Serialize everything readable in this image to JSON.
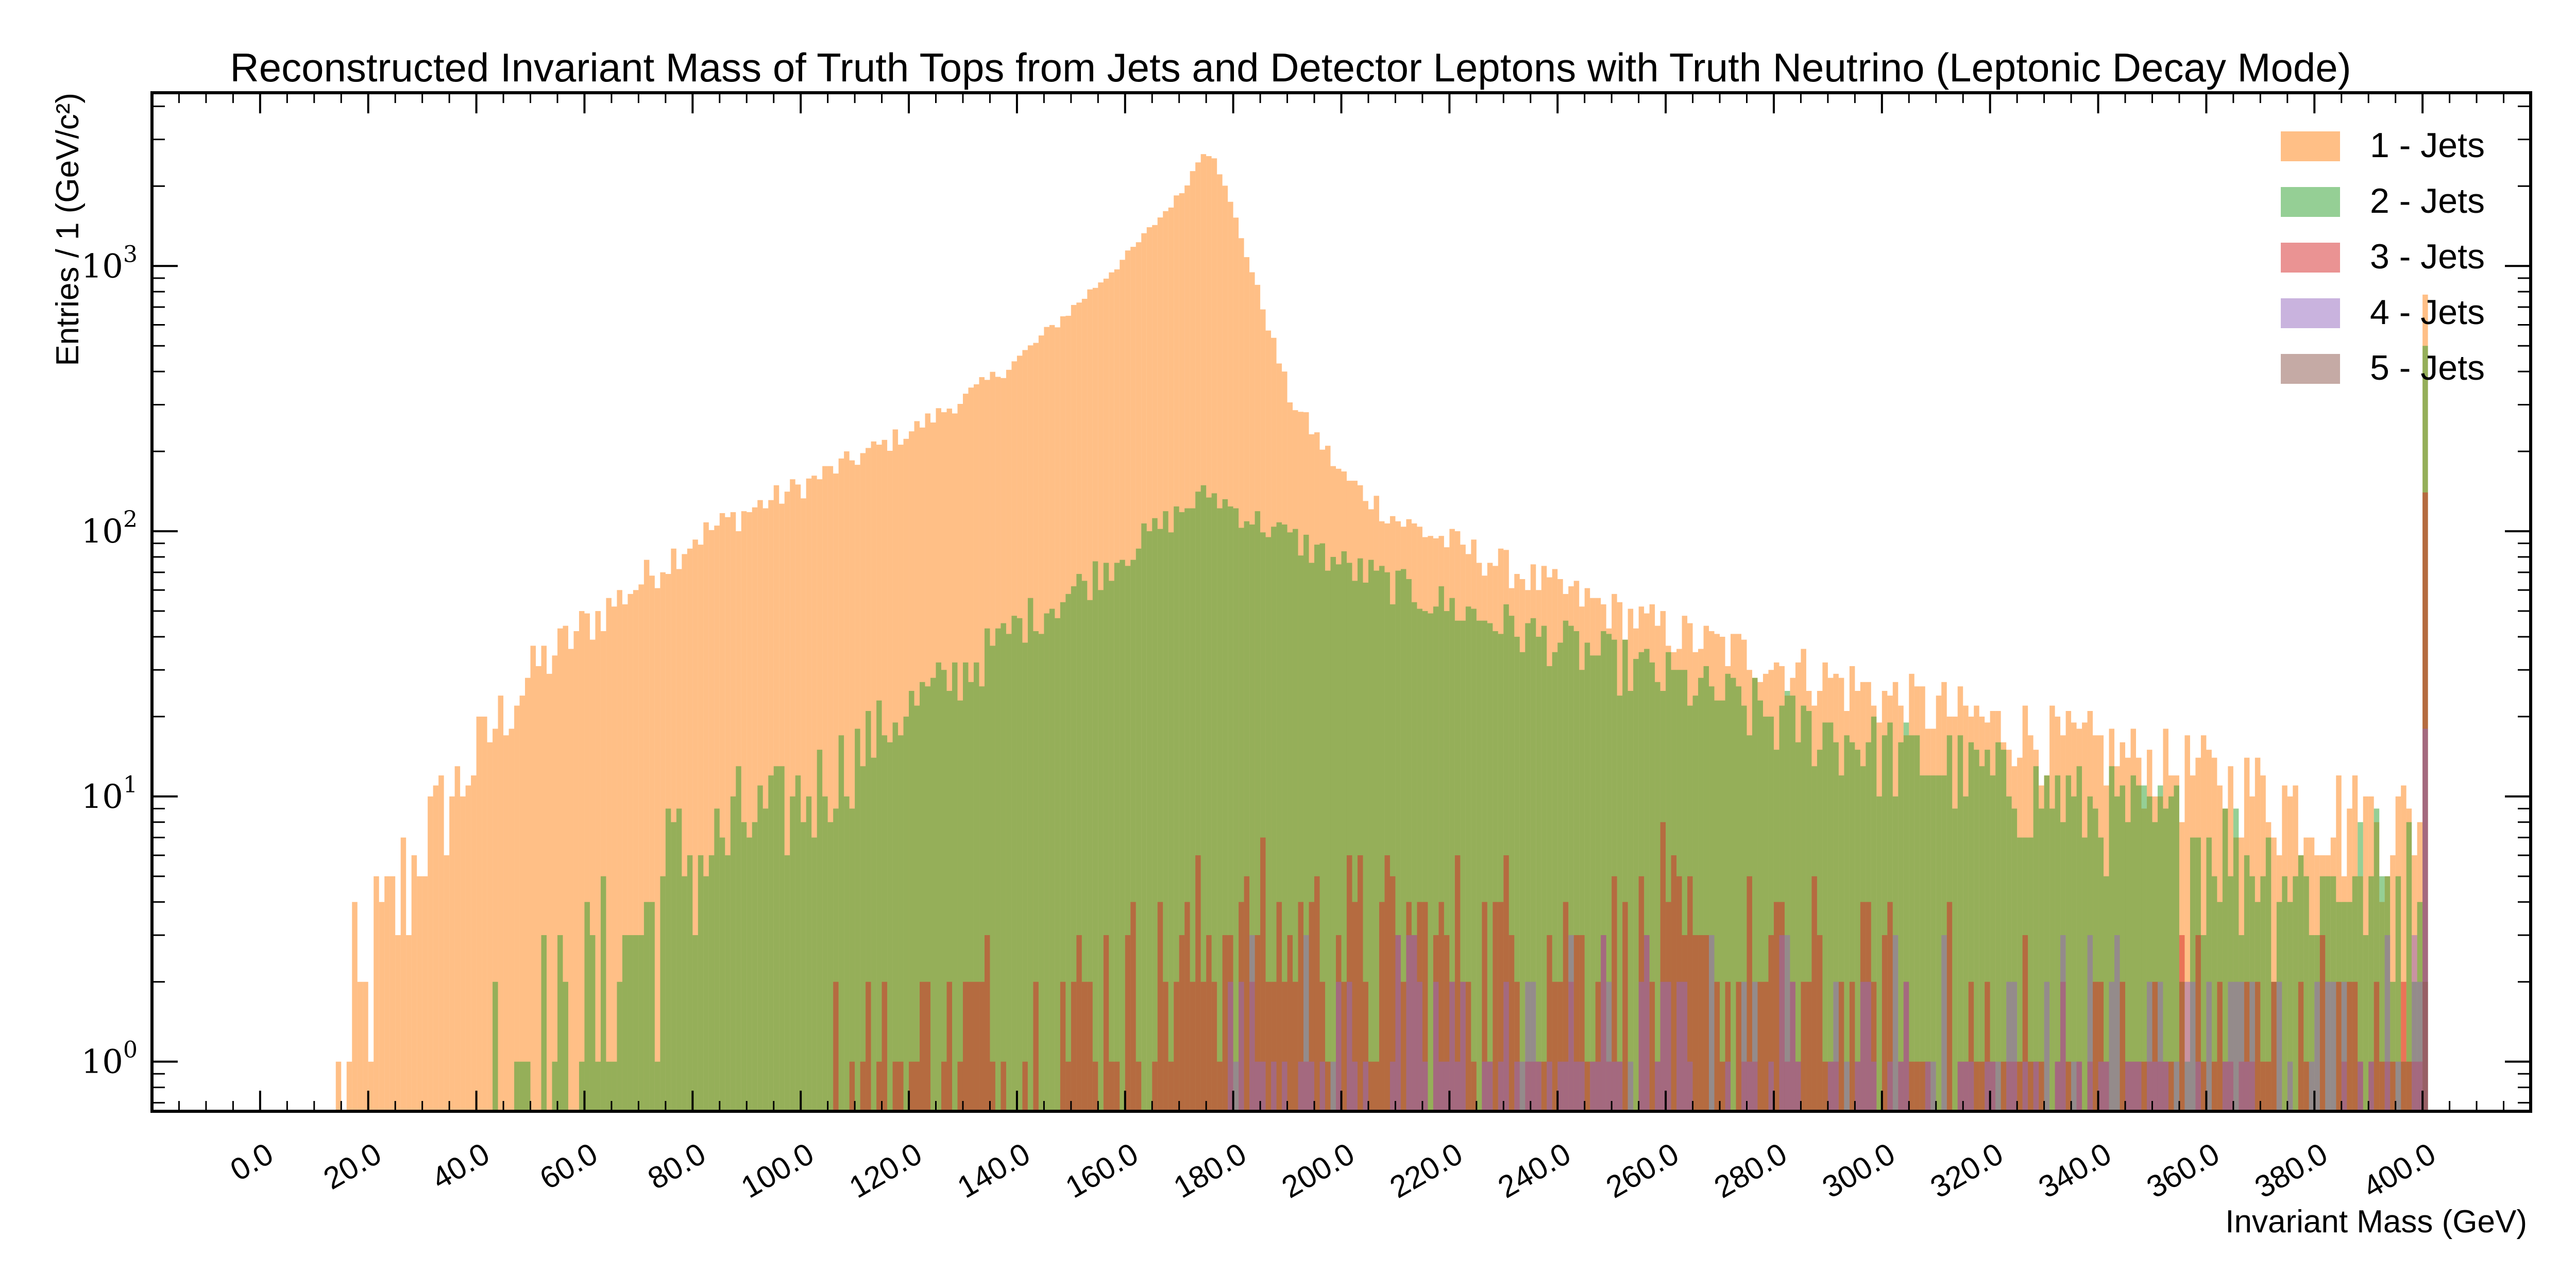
{
  "chart_data": {
    "type": "bar",
    "title": "Reconstructed Invariant Mass of Truth Tops from Jets and Detector Leptons with Truth Neutrino (Leptonic Decay Mode)",
    "xlabel": "Invariant Mass (GeV)",
    "ylabel": "Entries / 1 (GeV/c²)",
    "xlim": [
      -20,
      420
    ],
    "ylim": [
      0.65,
      4500
    ],
    "yscale": "log",
    "grid": false,
    "legend_position": "top-right",
    "x_ticks": [
      "0.0",
      "20.0",
      "40.0",
      "60.0",
      "80.0",
      "100.0",
      "120.0",
      "140.0",
      "160.0",
      "180.0",
      "200.0",
      "220.0",
      "240.0",
      "260.0",
      "280.0",
      "300.0",
      "320.0",
      "340.0",
      "360.0",
      "380.0",
      "400.0"
    ],
    "x_tick_values": [
      0,
      20,
      40,
      60,
      80,
      100,
      120,
      140,
      160,
      180,
      200,
      220,
      240,
      260,
      280,
      300,
      320,
      340,
      360,
      380,
      400
    ],
    "y_ticks": [
      {
        "value": 1,
        "base": "10",
        "exp": "0"
      },
      {
        "value": 10,
        "base": "10",
        "exp": "1"
      },
      {
        "value": 100,
        "base": "10",
        "exp": "2"
      },
      {
        "value": 1000,
        "base": "10",
        "exp": "3"
      }
    ],
    "bin_width": 1,
    "series": [
      {
        "name": "1 - Jets",
        "color": "#ff7f0e",
        "alpha": 0.5,
        "profile": [
          [
            13,
            0
          ],
          [
            14,
            1
          ],
          [
            17,
            1
          ],
          [
            19,
            2
          ],
          [
            22,
            3
          ],
          [
            26,
            5
          ],
          [
            30,
            7
          ],
          [
            35,
            10
          ],
          [
            40,
            15
          ],
          [
            50,
            30
          ],
          [
            60,
            45
          ],
          [
            70,
            65
          ],
          [
            80,
            95
          ],
          [
            90,
            120
          ],
          [
            100,
            150
          ],
          [
            110,
            190
          ],
          [
            120,
            240
          ],
          [
            130,
            320
          ],
          [
            140,
            450
          ],
          [
            150,
            700
          ],
          [
            160,
            1100
          ],
          [
            170,
            1900
          ],
          [
            174,
            2700
          ],
          [
            176,
            2600
          ],
          [
            180,
            1500
          ],
          [
            185,
            700
          ],
          [
            190,
            320
          ],
          [
            200,
            160
          ],
          [
            210,
            110
          ],
          [
            220,
            90
          ],
          [
            240,
            60
          ],
          [
            260,
            42
          ],
          [
            280,
            32
          ],
          [
            300,
            24
          ],
          [
            320,
            19
          ],
          [
            340,
            15
          ],
          [
            360,
            12
          ],
          [
            380,
            9
          ],
          [
            399,
            8
          ],
          [
            400,
            780
          ]
        ]
      },
      {
        "name": "2 - Jets",
        "color": "#2ca02c",
        "alpha": 0.5,
        "profile": [
          [
            41,
            0
          ],
          [
            42,
            1
          ],
          [
            50,
            1
          ],
          [
            60,
            2
          ],
          [
            70,
            3
          ],
          [
            75,
            6
          ],
          [
            80,
            6
          ],
          [
            90,
            8
          ],
          [
            100,
            10
          ],
          [
            110,
            15
          ],
          [
            120,
            22
          ],
          [
            130,
            30
          ],
          [
            140,
            45
          ],
          [
            150,
            60
          ],
          [
            160,
            85
          ],
          [
            170,
            120
          ],
          [
            175,
            140
          ],
          [
            180,
            120
          ],
          [
            190,
            95
          ],
          [
            200,
            75
          ],
          [
            210,
            62
          ],
          [
            220,
            52
          ],
          [
            240,
            38
          ],
          [
            260,
            28
          ],
          [
            280,
            20
          ],
          [
            300,
            15
          ],
          [
            320,
            12
          ],
          [
            340,
            9
          ],
          [
            360,
            7
          ],
          [
            380,
            5
          ],
          [
            399,
            5
          ],
          [
            400,
            500
          ]
        ]
      },
      {
        "name": "3 - Jets",
        "color": "#d62728",
        "alpha": 0.5,
        "profile": [
          [
            100,
            0
          ],
          [
            105,
            1
          ],
          [
            120,
            1
          ],
          [
            140,
            1.5
          ],
          [
            160,
            2
          ],
          [
            175,
            3
          ],
          [
            200,
            3
          ],
          [
            220,
            3
          ],
          [
            240,
            3
          ],
          [
            260,
            2.5
          ],
          [
            280,
            2
          ],
          [
            300,
            1.5
          ],
          [
            320,
            1.2
          ],
          [
            340,
            1
          ],
          [
            360,
            1
          ],
          [
            380,
            1
          ],
          [
            399,
            1
          ],
          [
            400,
            140
          ]
        ]
      },
      {
        "name": "4 - Jets",
        "color": "#9467bd",
        "alpha": 0.5,
        "profile": [
          [
            170,
            0
          ],
          [
            175,
            1
          ],
          [
            230,
            1
          ],
          [
            280,
            1
          ],
          [
            330,
            1
          ],
          [
            399,
            1
          ],
          [
            400,
            18
          ]
        ]
      },
      {
        "name": "5 - Jets",
        "color": "#8c564b",
        "alpha": 0.5,
        "profile": [
          [
            390,
            0
          ],
          [
            399,
            0
          ],
          [
            400,
            2
          ]
        ]
      }
    ]
  }
}
